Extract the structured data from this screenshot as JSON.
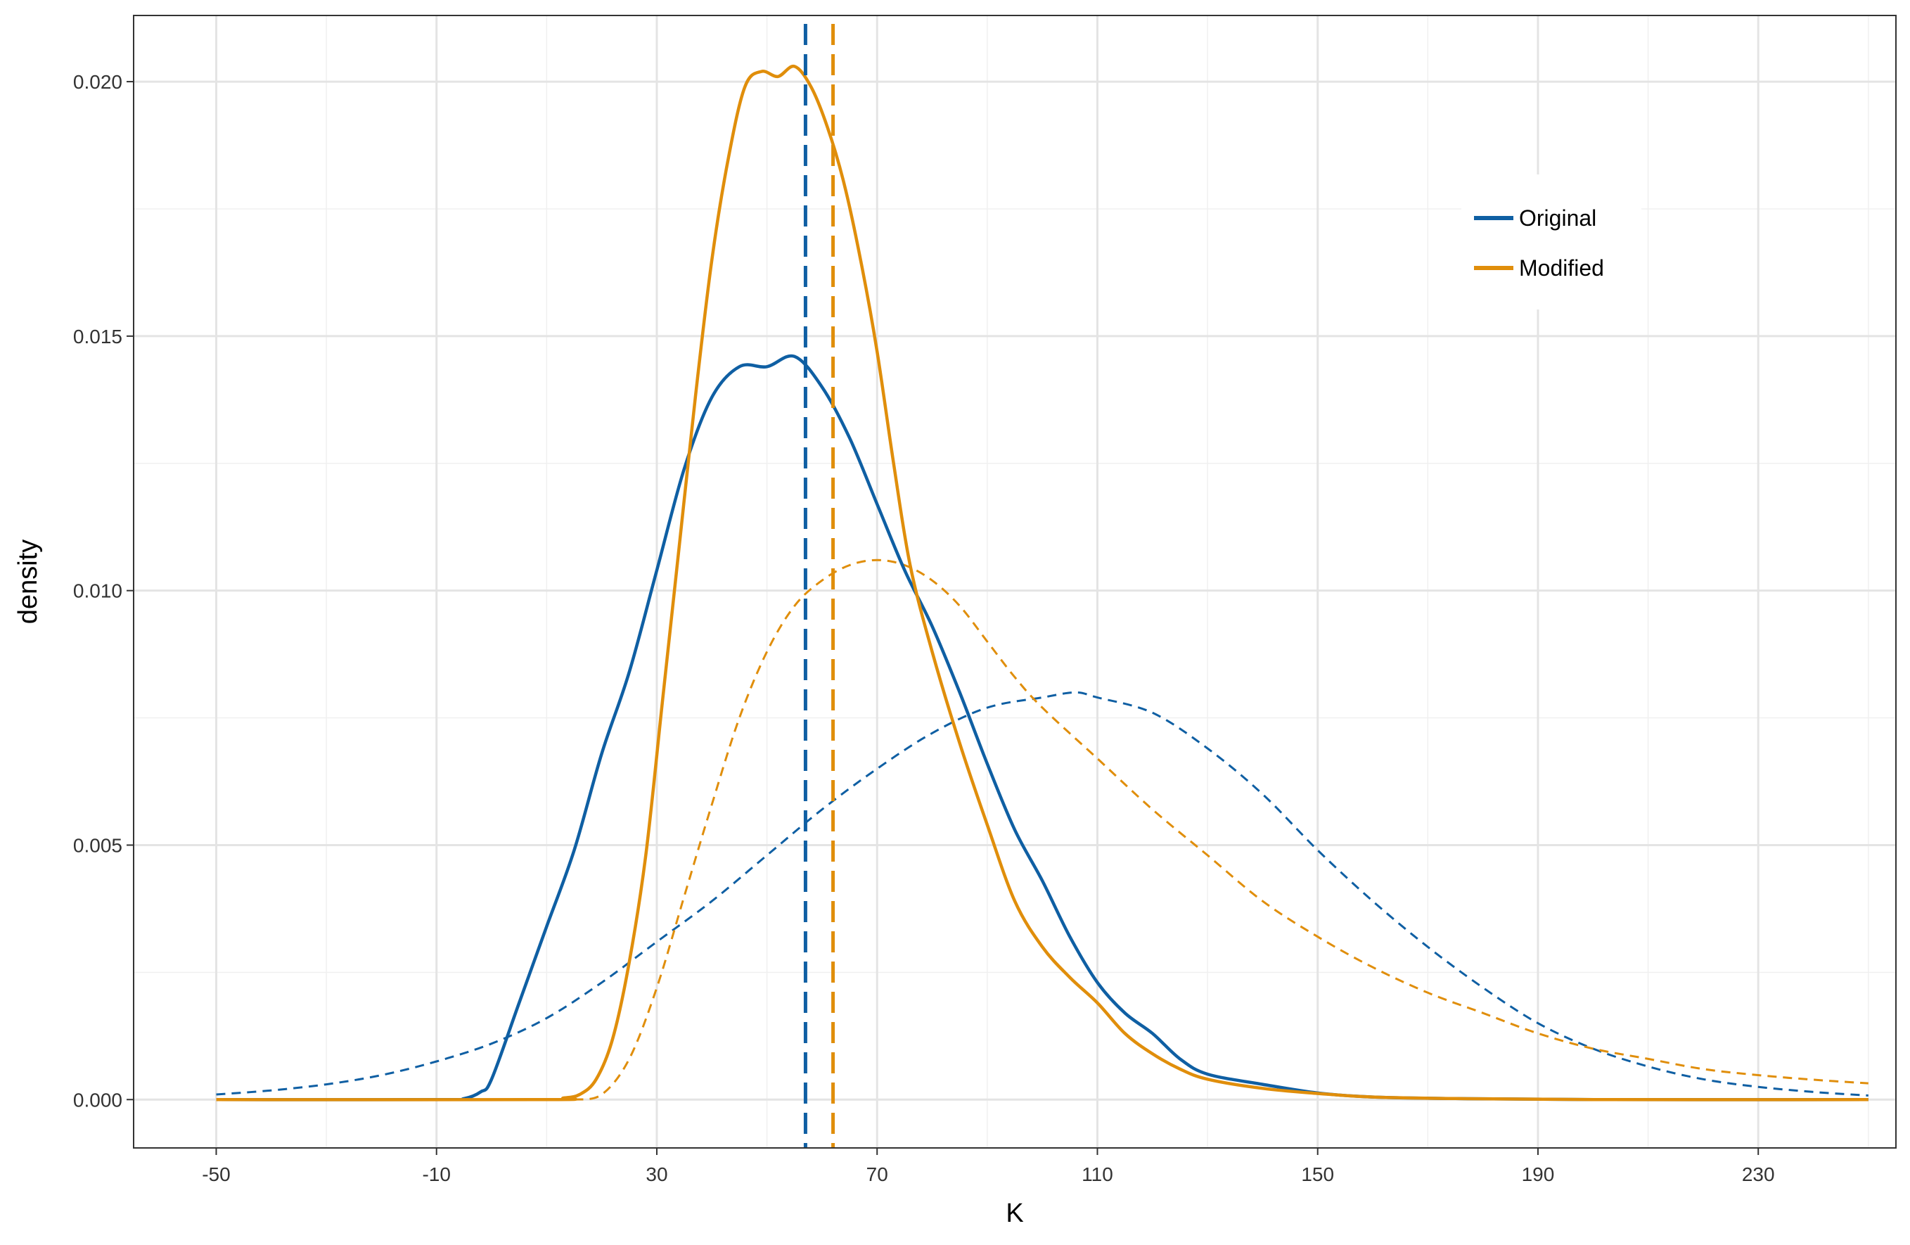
{
  "chart_data": {
    "type": "line",
    "title": "",
    "xlabel": "K",
    "ylabel": "density",
    "xlim": [
      -65,
      255
    ],
    "ylim": [
      -0.00095,
      0.0213
    ],
    "x_ticks": [
      -50,
      -10,
      30,
      70,
      110,
      150,
      190,
      230
    ],
    "x_tick_labels": [
      "-50",
      "-10",
      "30",
      "70",
      "110",
      "150",
      "190",
      "230"
    ],
    "y_ticks": [
      0.0,
      0.005,
      0.01,
      0.015,
      0.02
    ],
    "y_tick_labels": [
      "0.000",
      "0.005",
      "0.010",
      "0.015",
      "0.020"
    ],
    "grid": true,
    "legend_position": "top-right",
    "colors": {
      "Original": "#0f5fa3",
      "Modified": "#e08e0b"
    },
    "series": [
      {
        "name": "Original",
        "kind": "density",
        "x": [
          -50,
          -10,
          -5,
          -2,
          0,
          5,
          10,
          15,
          20,
          25,
          30,
          35,
          40,
          45,
          50,
          55,
          60,
          65,
          70,
          75,
          80,
          85,
          90,
          95,
          100,
          105,
          110,
          115,
          120,
          125,
          130,
          140,
          150,
          160,
          175,
          200,
          250
        ],
        "y": [
          0,
          0,
          2e-05,
          0.00015,
          0.0004,
          0.0019,
          0.0034,
          0.0049,
          0.0068,
          0.0084,
          0.0104,
          0.0124,
          0.0138,
          0.0144,
          0.0144,
          0.0146,
          0.014,
          0.013,
          0.0117,
          0.0104,
          0.0093,
          0.008,
          0.0066,
          0.0053,
          0.0043,
          0.0032,
          0.0023,
          0.0017,
          0.0013,
          0.0008,
          0.0005,
          0.0003,
          0.00013,
          5e-05,
          2e-05,
          0,
          0
        ]
      },
      {
        "name": "Modified",
        "kind": "density",
        "x": [
          -50,
          10,
          13,
          16,
          19,
          22,
          25,
          28,
          31,
          34,
          37,
          40,
          43,
          46,
          49,
          52,
          55,
          58,
          61,
          64,
          67,
          70,
          73,
          76,
          80,
          85,
          90,
          95,
          100,
          105,
          110,
          115,
          120,
          125,
          130,
          140,
          150,
          160,
          175,
          200,
          250
        ],
        "y": [
          0,
          0,
          3e-05,
          0.0001,
          0.0004,
          0.0012,
          0.0027,
          0.0048,
          0.0078,
          0.0108,
          0.0138,
          0.0165,
          0.0185,
          0.0199,
          0.0202,
          0.0201,
          0.0203,
          0.0199,
          0.0191,
          0.018,
          0.0165,
          0.0147,
          0.0125,
          0.0105,
          0.0088,
          0.007,
          0.0054,
          0.0039,
          0.003,
          0.0024,
          0.0019,
          0.0013,
          0.0009,
          0.0006,
          0.0004,
          0.00022,
          0.00012,
          5e-05,
          2e-05,
          0,
          0
        ]
      },
      {
        "name": "Original",
        "kind": "reference-curve",
        "x": [
          -50,
          -40,
          -30,
          -20,
          -10,
          0,
          10,
          20,
          30,
          40,
          50,
          60,
          70,
          80,
          90,
          100,
          106,
          110,
          120,
          130,
          140,
          150,
          160,
          170,
          180,
          190,
          200,
          210,
          220,
          230,
          240,
          250
        ],
        "y": [
          0.0001,
          0.00018,
          0.0003,
          0.00048,
          0.00075,
          0.0011,
          0.0016,
          0.0023,
          0.0031,
          0.0039,
          0.0048,
          0.0057,
          0.0065,
          0.0072,
          0.0077,
          0.0079,
          0.008,
          0.0079,
          0.0076,
          0.0069,
          0.006,
          0.0049,
          0.0039,
          0.003,
          0.0022,
          0.0015,
          0.001,
          0.00065,
          0.0004,
          0.00025,
          0.00015,
          8e-05
        ]
      },
      {
        "name": "Modified",
        "kind": "reference-curve",
        "x": [
          15,
          20,
          25,
          30,
          35,
          40,
          45,
          50,
          55,
          60,
          65,
          70,
          75,
          80,
          85,
          90,
          95,
          100,
          110,
          120,
          130,
          140,
          150,
          160,
          170,
          180,
          190,
          200,
          210,
          220,
          230,
          240,
          250
        ],
        "y": [
          0,
          0.0001,
          0.0008,
          0.0022,
          0.004,
          0.0058,
          0.0075,
          0.0088,
          0.0097,
          0.0102,
          0.0105,
          0.0106,
          0.0105,
          0.0102,
          0.0097,
          0.009,
          0.0083,
          0.0077,
          0.0067,
          0.0057,
          0.0048,
          0.0039,
          0.0032,
          0.0026,
          0.0021,
          0.0017,
          0.0013,
          0.001,
          0.0008,
          0.0006,
          0.00048,
          0.00039,
          0.00032
        ]
      }
    ],
    "vlines": [
      {
        "name": "Original",
        "x": 57
      },
      {
        "name": "Modified",
        "x": 62
      }
    ],
    "legend": [
      {
        "label": "Original"
      },
      {
        "label": "Modified"
      }
    ]
  }
}
